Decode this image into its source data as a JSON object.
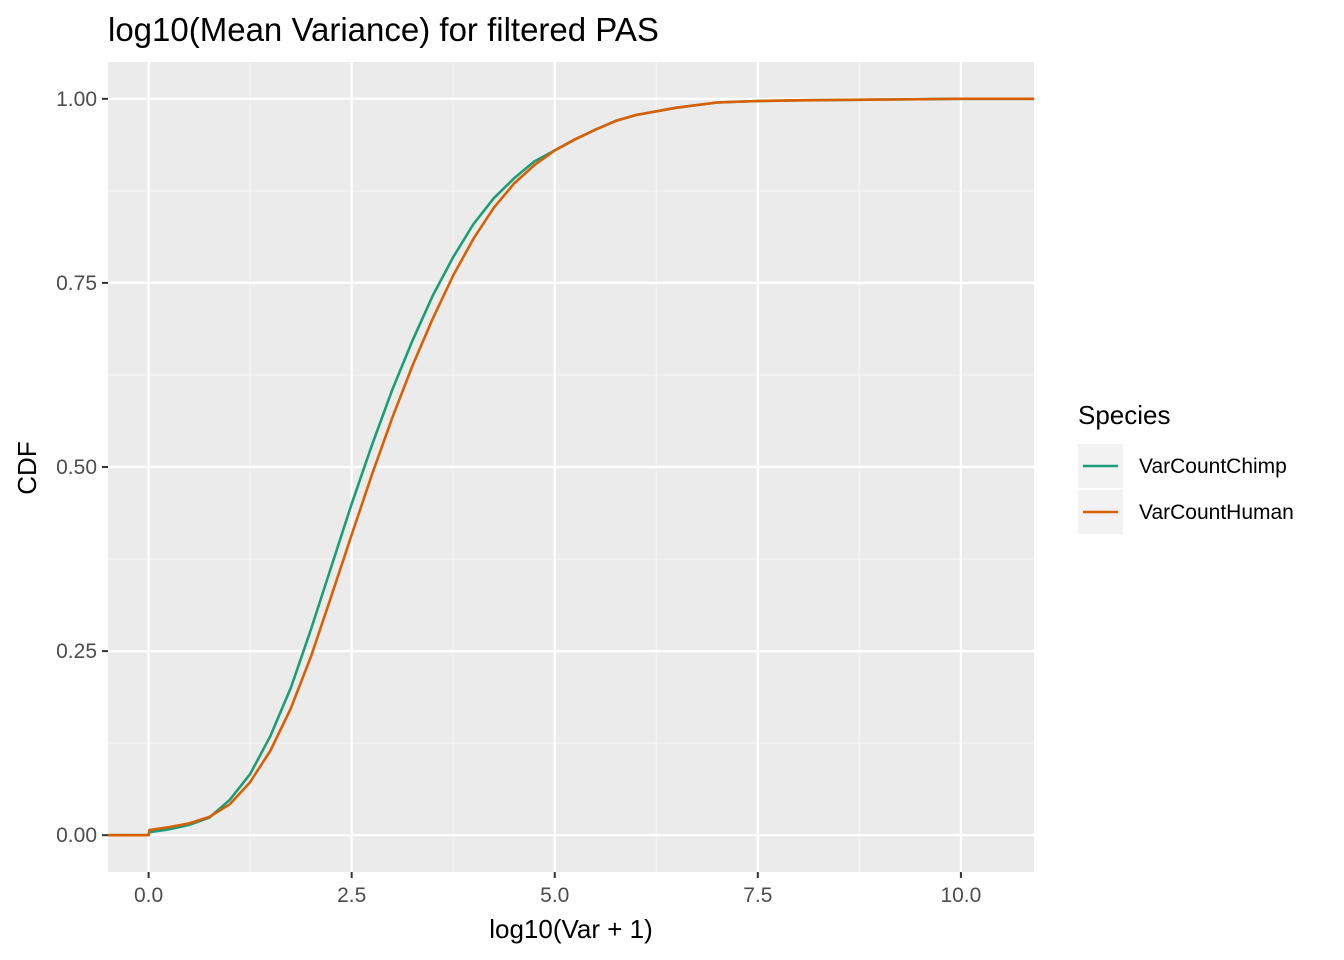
{
  "chart_data": {
    "type": "line",
    "title": "log10(Mean Variance) for filtered PAS",
    "xlabel": "log10(Var + 1)",
    "ylabel": "CDF",
    "xlim": [
      -0.5,
      10.9
    ],
    "ylim": [
      -0.05,
      1.05
    ],
    "x_ticks": [
      0,
      2.5,
      5,
      7.5,
      10
    ],
    "x_tick_labels": [
      "0.0",
      "2.5",
      "5.0",
      "7.5",
      "10.0"
    ],
    "y_ticks": [
      0,
      0.25,
      0.5,
      0.75,
      1
    ],
    "y_tick_labels": [
      "0.00",
      "0.25",
      "0.50",
      "0.75",
      "1.00"
    ],
    "grid": true,
    "background": "#ebebeb",
    "legend": {
      "title": "Species",
      "placement": "right"
    },
    "series": [
      {
        "name": "VarCountChimp",
        "color": "#1b9e77",
        "points": [
          [
            -0.5,
            0
          ],
          [
            0.0,
            0
          ],
          [
            0.01,
            0.004
          ],
          [
            0.25,
            0.008
          ],
          [
            0.5,
            0.014
          ],
          [
            0.75,
            0.024
          ],
          [
            1.0,
            0.048
          ],
          [
            1.25,
            0.083
          ],
          [
            1.5,
            0.135
          ],
          [
            1.75,
            0.2
          ],
          [
            2.0,
            0.28
          ],
          [
            2.25,
            0.365
          ],
          [
            2.5,
            0.45
          ],
          [
            2.75,
            0.53
          ],
          [
            3.0,
            0.605
          ],
          [
            3.25,
            0.672
          ],
          [
            3.5,
            0.733
          ],
          [
            3.75,
            0.785
          ],
          [
            4.0,
            0.83
          ],
          [
            4.25,
            0.865
          ],
          [
            4.5,
            0.892
          ],
          [
            4.75,
            0.915
          ],
          [
            5.0,
            0.93
          ],
          [
            5.25,
            0.945
          ],
          [
            5.5,
            0.958
          ],
          [
            5.75,
            0.97
          ],
          [
            6.0,
            0.978
          ],
          [
            6.5,
            0.988
          ],
          [
            7.0,
            0.995
          ],
          [
            7.5,
            0.997
          ],
          [
            8.0,
            0.998
          ],
          [
            9.0,
            0.999
          ],
          [
            10.0,
            1.0
          ],
          [
            10.9,
            1.0
          ]
        ]
      },
      {
        "name": "VarCountHuman",
        "color": "#d95f02",
        "points": [
          [
            -0.5,
            0
          ],
          [
            0.0,
            0
          ],
          [
            0.01,
            0.007
          ],
          [
            0.25,
            0.011
          ],
          [
            0.5,
            0.016
          ],
          [
            0.75,
            0.025
          ],
          [
            1.0,
            0.042
          ],
          [
            1.25,
            0.072
          ],
          [
            1.5,
            0.115
          ],
          [
            1.75,
            0.172
          ],
          [
            2.0,
            0.243
          ],
          [
            2.25,
            0.325
          ],
          [
            2.5,
            0.408
          ],
          [
            2.75,
            0.49
          ],
          [
            3.0,
            0.567
          ],
          [
            3.25,
            0.638
          ],
          [
            3.5,
            0.702
          ],
          [
            3.75,
            0.76
          ],
          [
            4.0,
            0.81
          ],
          [
            4.25,
            0.852
          ],
          [
            4.5,
            0.885
          ],
          [
            4.75,
            0.91
          ],
          [
            5.0,
            0.93
          ],
          [
            5.25,
            0.945
          ],
          [
            5.5,
            0.958
          ],
          [
            5.75,
            0.97
          ],
          [
            6.0,
            0.978
          ],
          [
            6.5,
            0.988
          ],
          [
            7.0,
            0.995
          ],
          [
            7.5,
            0.997
          ],
          [
            8.0,
            0.998
          ],
          [
            9.0,
            0.999
          ],
          [
            10.0,
            1.0
          ],
          [
            10.9,
            1.0
          ]
        ]
      }
    ]
  }
}
